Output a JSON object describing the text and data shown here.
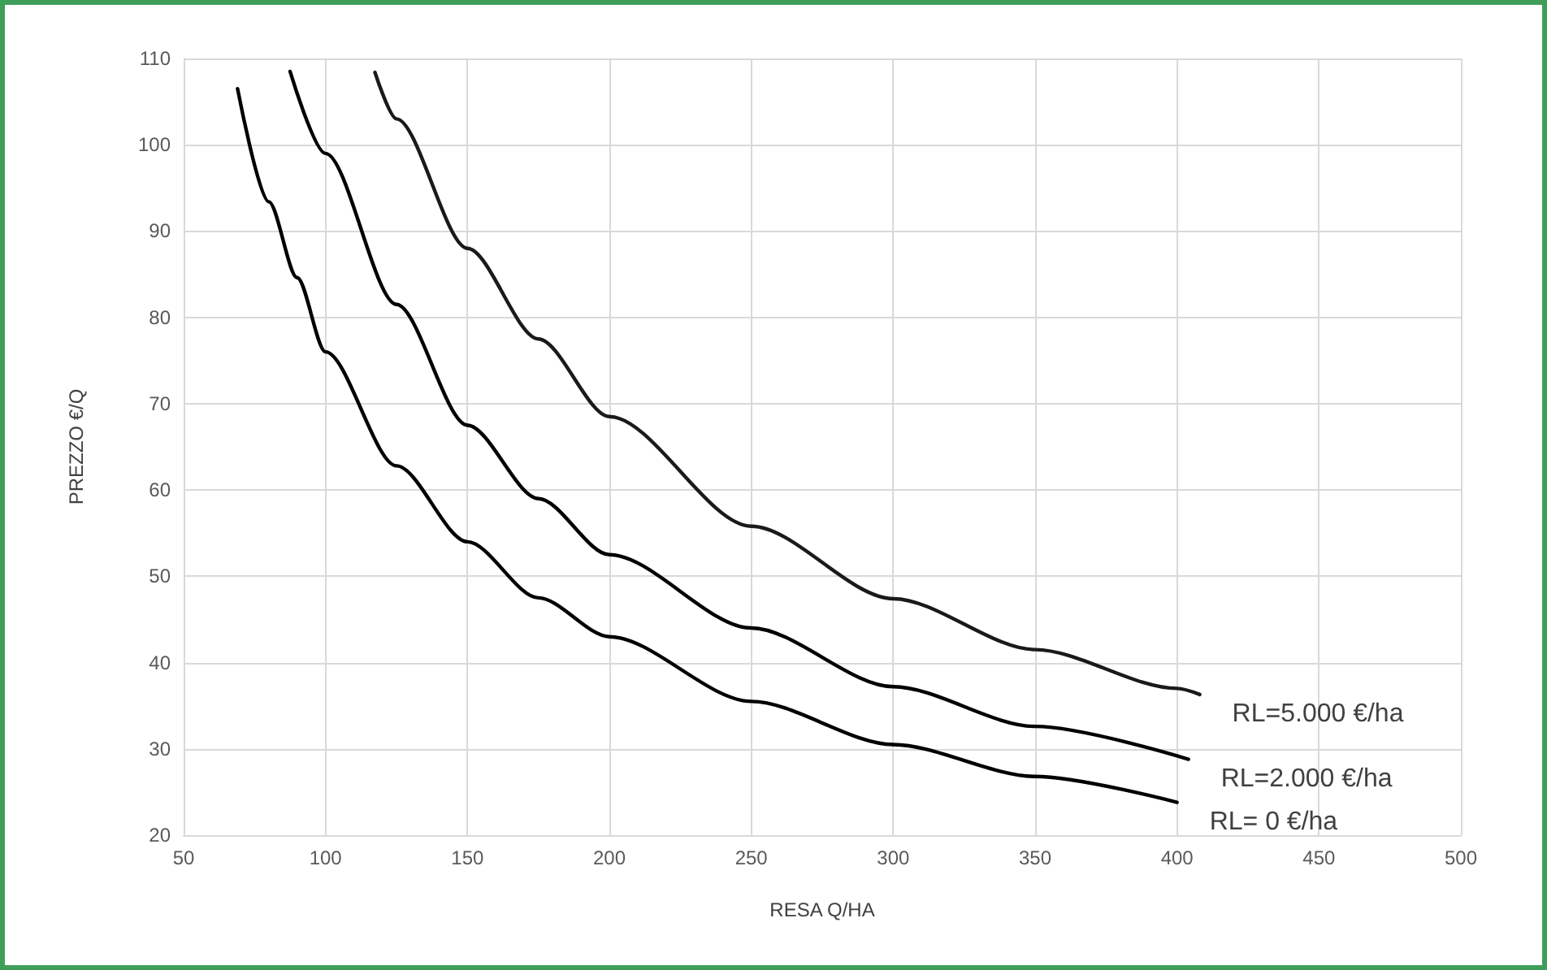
{
  "chart_data": {
    "type": "line",
    "xlabel": "RESA Q/HA",
    "ylabel": "PREZZO €/Q",
    "xlim": [
      50,
      500
    ],
    "xticks": [
      50,
      100,
      150,
      200,
      250,
      300,
      350,
      400,
      450,
      500
    ],
    "ylim": [
      20,
      110
    ],
    "yticks": [
      20,
      30,
      40,
      50,
      60,
      70,
      80,
      90,
      100,
      110
    ],
    "grid": true,
    "legend": false,
    "marker": "none",
    "line_style": "solid",
    "series": [
      {
        "name": "RL=5.000 €/ha",
        "color": "#1a1a1a",
        "x": [
          117.4,
          125,
          150,
          175,
          200,
          250,
          300,
          350,
          400,
          408
        ],
        "values": [
          108.4,
          103,
          88,
          77.5,
          68.5,
          55.8,
          47.4,
          41.5,
          37,
          36.3
        ]
      },
      {
        "name": "RL=2.000 €/ha",
        "color": "#000000",
        "x": [
          87.5,
          100,
          125,
          150,
          175,
          200,
          250,
          300,
          350,
          404
        ],
        "values": [
          108.5,
          99,
          81.5,
          67.5,
          59,
          52.5,
          44,
          37.2,
          32.6,
          28.8
        ]
      },
      {
        "name": "RL= 0 €/ha",
        "color": "#000000",
        "x": [
          69,
          80,
          90,
          100,
          125,
          150,
          175,
          200,
          250,
          300,
          350,
          400
        ],
        "values": [
          106.5,
          93.4,
          84.6,
          76,
          62.8,
          54,
          47.5,
          43,
          35.5,
          30.5,
          26.8,
          23.8
        ]
      }
    ]
  }
}
